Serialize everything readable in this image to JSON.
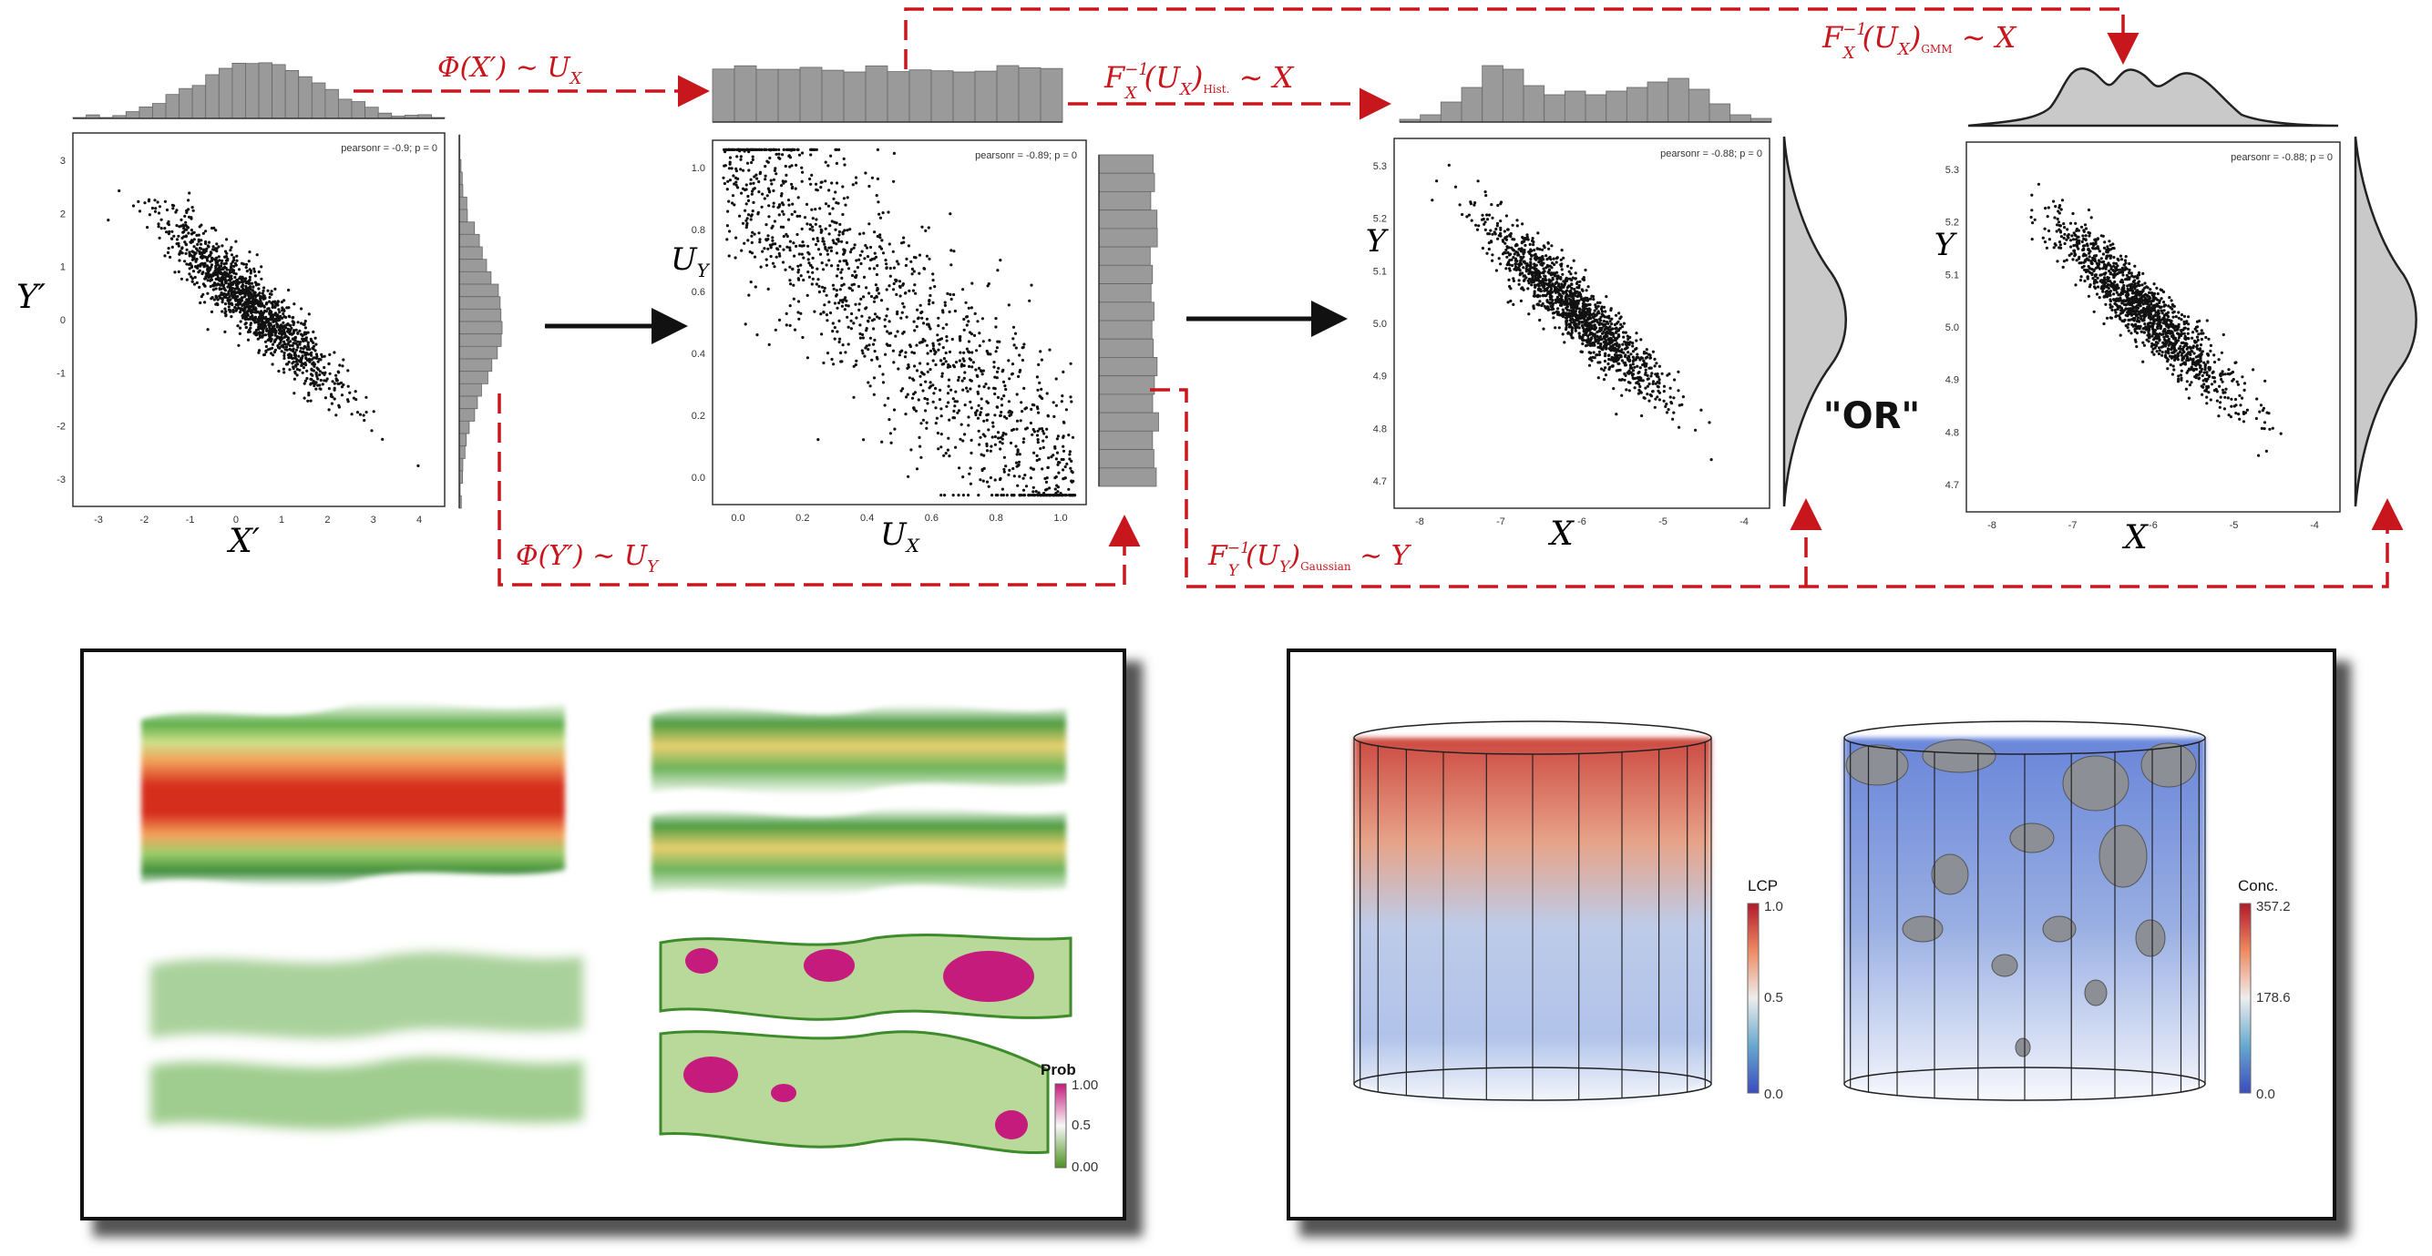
{
  "colors": {
    "arrow_red": "#c8161d",
    "scatter_dot": "#111111",
    "hist_fill": "#9a9a9a",
    "kde_fill": "#c9c9c9",
    "frame": "#111111"
  },
  "top_pipeline": {
    "plots": [
      {
        "id": "p1",
        "stat": "pearsonr = -0.9; p = 0",
        "xlabel": "X′",
        "ylabel": "Y′",
        "xticks": [
          "-3",
          "-2",
          "-1",
          "0",
          "1",
          "2",
          "3",
          "4"
        ],
        "yticks": [
          "3",
          "2",
          "1",
          "0",
          "-1",
          "-2",
          "-3"
        ]
      },
      {
        "id": "p2",
        "stat": "pearsonr = -0.89; p = 0",
        "xlabel": "U",
        "xlabel_sub": "X",
        "ylabel": "U",
        "ylabel_sub": "Y",
        "xticks": [
          "0.0",
          "0.2",
          "0.4",
          "0.6",
          "0.8",
          "1.0"
        ],
        "yticks": [
          "1.0",
          "0.8",
          "0.6",
          "0.4",
          "0.2",
          "0.0"
        ]
      },
      {
        "id": "p3",
        "stat": "pearsonr = -0.88; p = 0",
        "xlabel": "X",
        "ylabel": "Y",
        "xticks": [
          "-8",
          "-7",
          "-6",
          "-5",
          "-4"
        ],
        "yticks": [
          "5.3",
          "5.2",
          "5.1",
          "5.0",
          "4.9",
          "4.8",
          "4.7"
        ]
      },
      {
        "id": "p4",
        "stat": "pearsonr = -0.88; p = 0",
        "xlabel": "X",
        "ylabel": "Y",
        "xticks": [
          "-8",
          "-7",
          "-6",
          "-5",
          "-4"
        ],
        "yticks": [
          "5.3",
          "5.2",
          "5.1",
          "5.0",
          "4.9",
          "4.8",
          "4.7"
        ]
      }
    ],
    "arrow_labels": {
      "phi_x": {
        "main": "Φ(X′) ∼ U",
        "sub": "X"
      },
      "phi_y": {
        "main": "Φ(Y′) ∼ U",
        "sub": "Y"
      },
      "inv_hist": {
        "pre": "F",
        "sub": "X",
        "sup": "−1",
        "mid": "(U",
        "mid_sub": "X",
        "close": ")",
        "tag": "Hist.",
        "post": " ∼ X"
      },
      "inv_gmm": {
        "pre": "F",
        "sub": "X",
        "sup": "−1",
        "mid": "(U",
        "mid_sub": "X",
        "close": ")",
        "tag": "GMM",
        "post": " ∼ X"
      },
      "inv_gauss": {
        "pre": "F",
        "sub": "Y",
        "sup": "−1",
        "mid": "(U",
        "mid_sub": "Y",
        "close": ")",
        "tag": "Gaussian",
        "post": " ∼ Y"
      }
    },
    "or_label": "\"OR\""
  },
  "bottom_left": {
    "colorbar_title": "Prob",
    "colorbar_ticks": [
      "1.00",
      "0.5",
      "0.00"
    ]
  },
  "bottom_right": {
    "colorbars": [
      {
        "title": "LCP",
        "ticks": [
          "1.0",
          "0.5",
          "0.0"
        ]
      },
      {
        "title": "Conc.",
        "ticks": [
          "357.2",
          "178.6",
          "0.0"
        ]
      }
    ]
  }
}
